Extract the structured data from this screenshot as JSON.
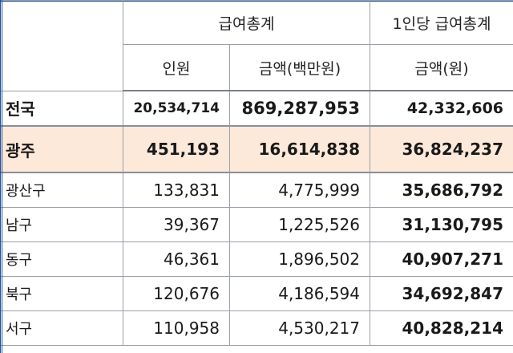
{
  "headers": {
    "group_pay_total": "급여총계",
    "group_per_capita": "1인당 급여총계",
    "col_people": "인원",
    "col_amount": "금액(백만원)",
    "col_amount_won": "금액(원)"
  },
  "total_row": {
    "region": "전국",
    "people": "20,534,714",
    "amount": "869,287,953",
    "per_capita": "42,332,606"
  },
  "highlight_row": {
    "region": "광주",
    "people": "451,193",
    "amount": "16,614,838",
    "per_capita": "36,824,237",
    "highlight_color": "#fde9d9"
  },
  "districts": [
    {
      "region": "광산구",
      "people": "133,831",
      "amount": "4,775,999",
      "per_capita": "35,686,792"
    },
    {
      "region": "남구",
      "people": "39,367",
      "amount": "1,225,526",
      "per_capita": "31,130,795"
    },
    {
      "region": "동구",
      "people": "46,361",
      "amount": "1,896,502",
      "per_capita": "40,907,271"
    },
    {
      "region": "북구",
      "people": "120,676",
      "amount": "4,186,594",
      "per_capita": "34,692,847"
    },
    {
      "region": "서구",
      "people": "110,958",
      "amount": "4,530,217",
      "per_capita": "40,828,214"
    }
  ]
}
